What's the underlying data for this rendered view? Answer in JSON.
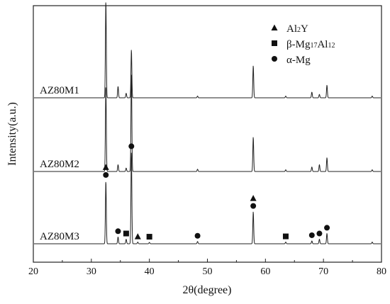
{
  "chart_data": {
    "type": "line",
    "xlabel": "2θ(degree)",
    "ylabel": "Intensity(a.u.)",
    "xlim": [
      20,
      80
    ],
    "xticks": [
      20,
      30,
      40,
      50,
      60,
      70,
      80
    ],
    "yticks_shown": false,
    "grid": false,
    "legend_position": "top-right",
    "legend": [
      {
        "marker": "triangle",
        "label_parts": [
          [
            "Al",
            ""
          ],
          [
            "2",
            "sub"
          ],
          [
            "Y",
            ""
          ]
        ]
      },
      {
        "marker": "square",
        "label_parts": [
          [
            "β-Mg",
            ""
          ],
          [
            "17",
            "sub"
          ],
          [
            "Al",
            ""
          ],
          [
            "12",
            "sub"
          ]
        ]
      },
      {
        "marker": "circle",
        "label_parts": [
          [
            "α-Mg",
            ""
          ]
        ]
      }
    ],
    "series": [
      {
        "name": "AZ80M3",
        "offset": 2.0,
        "peaks": [
          {
            "x": 32.5,
            "h": 0.55
          },
          {
            "x": 34.6,
            "h": 0.06
          },
          {
            "x": 36.0,
            "h": 0.04
          },
          {
            "x": 36.9,
            "h": 0.8
          },
          {
            "x": 38.0,
            "h": 0.015
          },
          {
            "x": 40.0,
            "h": 0.012
          },
          {
            "x": 48.3,
            "h": 0.02
          },
          {
            "x": 57.9,
            "h": 0.28
          },
          {
            "x": 63.5,
            "h": 0.015
          },
          {
            "x": 68.0,
            "h": 0.025
          },
          {
            "x": 69.3,
            "h": 0.04
          },
          {
            "x": 70.6,
            "h": 0.09
          },
          {
            "x": 78.4,
            "h": 0.015
          }
        ],
        "markers": [
          {
            "x": 32.5,
            "symbols": [
              "triangle",
              "circle"
            ]
          },
          {
            "x": 34.6,
            "symbols": [
              "circle"
            ]
          },
          {
            "x": 36.0,
            "symbols": [
              "square"
            ]
          },
          {
            "x": 36.9,
            "symbols": [
              "circle"
            ]
          },
          {
            "x": 38.0,
            "symbols": [
              "triangle"
            ]
          },
          {
            "x": 40.0,
            "symbols": [
              "square"
            ]
          },
          {
            "x": 48.3,
            "symbols": [
              "circle"
            ]
          },
          {
            "x": 57.9,
            "symbols": [
              "triangle",
              "circle"
            ]
          },
          {
            "x": 63.5,
            "symbols": [
              "square"
            ]
          },
          {
            "x": 68.0,
            "symbols": [
              "circle"
            ]
          },
          {
            "x": 69.3,
            "symbols": [
              "circle"
            ]
          },
          {
            "x": 70.6,
            "symbols": [
              "circle"
            ]
          }
        ]
      },
      {
        "name": "AZ80M2",
        "offset": 1.0,
        "peaks": [
          {
            "x": 32.5,
            "h": 0.75
          },
          {
            "x": 34.6,
            "h": 0.06
          },
          {
            "x": 36.0,
            "h": 0.03
          },
          {
            "x": 36.9,
            "h": 0.85
          },
          {
            "x": 48.3,
            "h": 0.02
          },
          {
            "x": 57.9,
            "h": 0.3
          },
          {
            "x": 63.5,
            "h": 0.015
          },
          {
            "x": 68.0,
            "h": 0.04
          },
          {
            "x": 69.3,
            "h": 0.06
          },
          {
            "x": 70.6,
            "h": 0.12
          },
          {
            "x": 78.4,
            "h": 0.015
          }
        ],
        "markers": []
      },
      {
        "name": "AZ80M1",
        "offset": 0.0,
        "peaks": [
          {
            "x": 32.5,
            "h": 0.85
          },
          {
            "x": 34.6,
            "h": 0.1
          },
          {
            "x": 36.0,
            "h": 0.04
          },
          {
            "x": 36.9,
            "h": 0.42
          },
          {
            "x": 48.3,
            "h": 0.015
          },
          {
            "x": 57.9,
            "h": 0.28
          },
          {
            "x": 63.5,
            "h": 0.015
          },
          {
            "x": 68.0,
            "h": 0.05
          },
          {
            "x": 69.3,
            "h": 0.03
          },
          {
            "x": 70.6,
            "h": 0.11
          },
          {
            "x": 78.4,
            "h": 0.015
          }
        ],
        "markers": []
      }
    ]
  }
}
